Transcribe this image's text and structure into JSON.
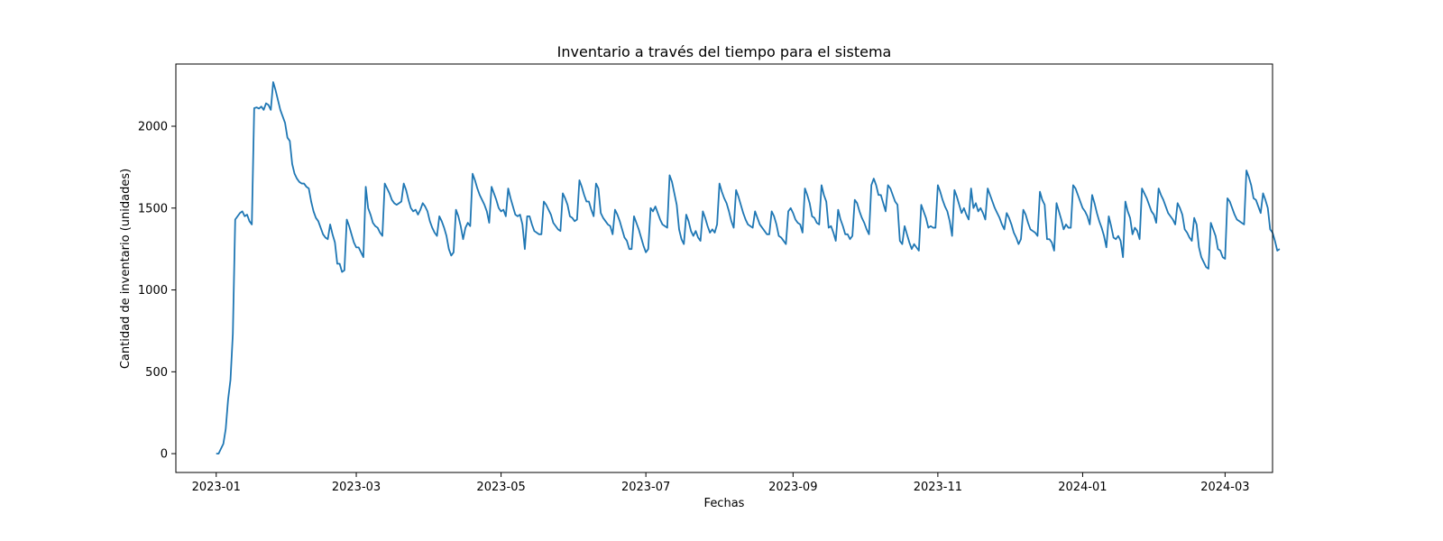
{
  "chart_data": {
    "type": "line",
    "title": "Inventario a través del tiempo para el sistema",
    "xlabel": "Fechas",
    "ylabel": "Cantidad de inventario (unidades)",
    "x_ticks": [
      "2023-01",
      "2023-03",
      "2023-05",
      "2023-07",
      "2023-09",
      "2023-11",
      "2024-01",
      "2024-03"
    ],
    "y_ticks": [
      0,
      500,
      1000,
      1500,
      2000
    ],
    "xlim": [
      "2022-12-15",
      "2024-03-21"
    ],
    "ylim": [
      -115,
      2380
    ],
    "grid": false,
    "line_color": "#1f77b4",
    "series": [
      {
        "start_date": "2023-01-01",
        "step_days": 1,
        "values": [
          0,
          0,
          30,
          60,
          150,
          330,
          450,
          730,
          1430,
          1450,
          1470,
          1480,
          1450,
          1460,
          1420,
          1400,
          2110,
          2115,
          2108,
          2120,
          2100,
          2140,
          2130,
          2100,
          2270,
          2220,
          2160,
          2100,
          2060,
          2020,
          1930,
          1910,
          1770,
          1710,
          1680,
          1660,
          1650,
          1650,
          1630,
          1620,
          1540,
          1480,
          1440,
          1420,
          1380,
          1340,
          1320,
          1310,
          1400,
          1340,
          1290,
          1160,
          1160,
          1110,
          1120,
          1430,
          1390,
          1340,
          1290,
          1260,
          1260,
          1230,
          1200,
          1630,
          1500,
          1460,
          1410,
          1390,
          1380,
          1350,
          1330,
          1650,
          1620,
          1590,
          1550,
          1530,
          1520,
          1530,
          1540,
          1650,
          1610,
          1550,
          1500,
          1480,
          1490,
          1460,
          1490,
          1530,
          1510,
          1480,
          1420,
          1380,
          1350,
          1330,
          1450,
          1420,
          1380,
          1330,
          1250,
          1210,
          1230,
          1490,
          1450,
          1390,
          1310,
          1380,
          1410,
          1390,
          1710,
          1670,
          1620,
          1580,
          1550,
          1520,
          1480,
          1410,
          1630,
          1590,
          1550,
          1500,
          1480,
          1490,
          1450,
          1620,
          1560,
          1510,
          1460,
          1450,
          1460,
          1400,
          1250,
          1450,
          1450,
          1400,
          1360,
          1350,
          1340,
          1340,
          1540,
          1520,
          1490,
          1460,
          1410,
          1390,
          1370,
          1360,
          1590,
          1560,
          1520,
          1450,
          1440,
          1420,
          1430,
          1670,
          1630,
          1580,
          1540,
          1540,
          1490,
          1450,
          1650,
          1620,
          1470,
          1440,
          1420,
          1400,
          1390,
          1340,
          1490,
          1460,
          1420,
          1370,
          1320,
          1300,
          1250,
          1250,
          1450,
          1410,
          1370,
          1320,
          1270,
          1230,
          1250,
          1500,
          1480,
          1510,
          1470,
          1430,
          1400,
          1390,
          1380,
          1700,
          1660,
          1590,
          1520,
          1370,
          1310,
          1280,
          1460,
          1420,
          1360,
          1330,
          1360,
          1320,
          1300,
          1480,
          1440,
          1390,
          1350,
          1370,
          1350,
          1400,
          1650,
          1600,
          1560,
          1530,
          1480,
          1420,
          1380,
          1610,
          1570,
          1520,
          1470,
          1430,
          1400,
          1390,
          1380,
          1480,
          1440,
          1400,
          1380,
          1360,
          1340,
          1340,
          1480,
          1450,
          1400,
          1330,
          1320,
          1300,
          1280,
          1480,
          1500,
          1470,
          1430,
          1410,
          1400,
          1350,
          1620,
          1580,
          1530,
          1450,
          1440,
          1410,
          1400,
          1640,
          1580,
          1540,
          1380,
          1390,
          1350,
          1300,
          1490,
          1430,
          1390,
          1340,
          1340,
          1310,
          1330,
          1550,
          1530,
          1480,
          1440,
          1410,
          1370,
          1340,
          1640,
          1680,
          1640,
          1580,
          1580,
          1530,
          1480,
          1640,
          1620,
          1580,
          1540,
          1520,
          1300,
          1280,
          1390,
          1340,
          1290,
          1250,
          1280,
          1260,
          1240,
          1520,
          1480,
          1440,
          1380,
          1390,
          1380,
          1380,
          1640,
          1600,
          1550,
          1510,
          1480,
          1420,
          1330,
          1610,
          1570,
          1520,
          1470,
          1500,
          1460,
          1430,
          1620,
          1500,
          1530,
          1480,
          1500,
          1470,
          1430,
          1620,
          1580,
          1540,
          1500,
          1470,
          1440,
          1400,
          1370,
          1470,
          1440,
          1400,
          1350,
          1320,
          1280,
          1310,
          1490,
          1460,
          1410,
          1370,
          1360,
          1350,
          1330,
          1600,
          1550,
          1520,
          1310,
          1310,
          1290,
          1240,
          1530,
          1480,
          1430,
          1370,
          1400,
          1380,
          1380,
          1640,
          1620,
          1580,
          1540,
          1500,
          1480,
          1450,
          1400,
          1580,
          1530,
          1470,
          1420,
          1380,
          1330,
          1260,
          1450,
          1390,
          1320,
          1310,
          1330,
          1300,
          1200,
          1540,
          1480,
          1440,
          1340,
          1380,
          1360,
          1310,
          1620,
          1590,
          1560,
          1520,
          1480,
          1460,
          1410,
          1620,
          1580,
          1550,
          1510,
          1470,
          1450,
          1430,
          1400,
          1530,
          1500,
          1460,
          1370,
          1350,
          1320,
          1300,
          1440,
          1400,
          1260,
          1200,
          1170,
          1140,
          1130,
          1410,
          1370,
          1330,
          1250,
          1240,
          1200,
          1190,
          1560,
          1540,
          1500,
          1460,
          1430,
          1420,
          1410,
          1400,
          1730,
          1690,
          1640,
          1560,
          1550,
          1510,
          1470,
          1590,
          1550,
          1500,
          1370,
          1350,
          1300,
          1240,
          1250
        ]
      }
    ]
  }
}
